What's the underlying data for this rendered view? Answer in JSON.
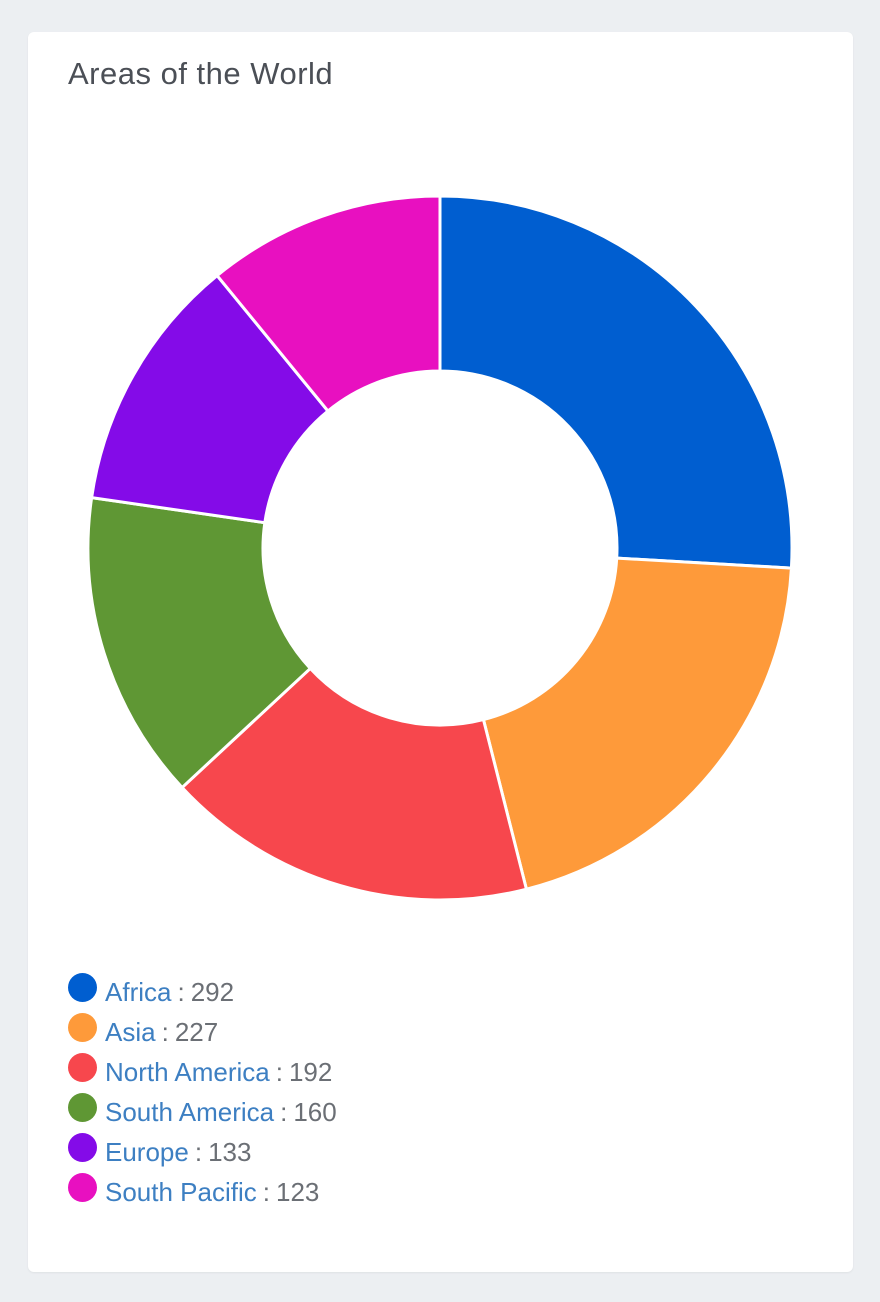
{
  "card": {
    "title": "Areas of the World"
  },
  "chart_data": {
    "type": "pie",
    "variant": "donut",
    "title": "Areas of the World",
    "legend_position": "bottom",
    "separator": ":",
    "slices": [
      {
        "label": "Africa",
        "value": 292,
        "color": "#005ed0"
      },
      {
        "label": "Asia",
        "value": 227,
        "color": "#fe9a3a"
      },
      {
        "label": "North America",
        "value": 192,
        "color": "#f7474d"
      },
      {
        "label": "South America",
        "value": 160,
        "color": "#5f9734"
      },
      {
        "label": "Europe",
        "value": 133,
        "color": "#840be8"
      },
      {
        "label": "South Pacific",
        "value": 123,
        "color": "#e810c0"
      }
    ]
  }
}
